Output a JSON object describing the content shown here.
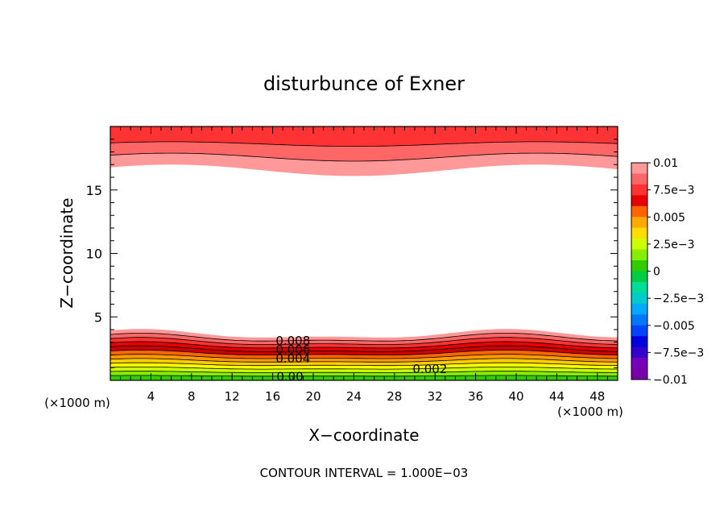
{
  "chart_data": {
    "type": "contour",
    "title": "disturbunce of Exner",
    "xlabel": "X−coordinate",
    "ylabel": "Z−coordinate",
    "x_unit_label": "(×1000 m)",
    "y_unit_label": "(×1000 m)",
    "footer": "CONTOUR INTERVAL = 1.000E−03",
    "xlim": [
      0,
      50
    ],
    "ylim": [
      0,
      20
    ],
    "x_ticks": [
      4,
      8,
      12,
      16,
      20,
      24,
      28,
      32,
      36,
      40,
      44,
      48
    ],
    "y_ticks": [
      5,
      10,
      15
    ],
    "contour_labels": [
      {
        "text": "0.008",
        "x": 18.0,
        "z": 3.1
      },
      {
        "text": "0.006",
        "x": 18.0,
        "z": 2.4
      },
      {
        "text": "0.004",
        "x": 18.0,
        "z": 1.7
      },
      {
        "text": "0.002",
        "x": 31.5,
        "z": 0.9
      },
      {
        "text": "0.00",
        "x": 17.7,
        "z": 0.3
      }
    ],
    "colorbar": {
      "labels": [
        "0.01",
        "7.5e−3",
        "0.005",
        "2.5e−3",
        "0",
        "−2.5e−3",
        "−0.005",
        "−7.5e−3",
        "−0.01"
      ],
      "colors": [
        "#ff9999",
        "#ff6666",
        "#ff3333",
        "#e60000",
        "#ff6600",
        "#ffaa00",
        "#ffdd00",
        "#ccff00",
        "#88ee00",
        "#33cc00",
        "#00cc44",
        "#00dd99",
        "#00cccc",
        "#00aaff",
        "#0077ff",
        "#0044ff",
        "#0000dd",
        "#3300cc",
        "#7700bb",
        "#7700aa"
      ]
    },
    "bottom_layer_colors": [
      "#ff9999",
      "#ff6666",
      "#ff3333",
      "#e60000",
      "#cc0000",
      "#ff6600",
      "#ff9900",
      "#ffcc00",
      "#ffff00",
      "#ccff00",
      "#88ee00",
      "#33cc00"
    ],
    "top_layer_colors": [
      "#ff9999",
      "#ff6666",
      "#ff3333"
    ]
  }
}
